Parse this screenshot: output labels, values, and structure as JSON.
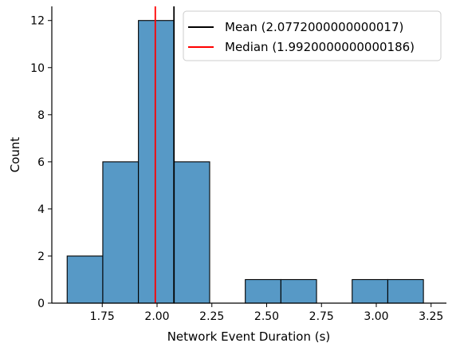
{
  "chart_data": {
    "type": "bar",
    "xlabel": "Network Event Duration (s)",
    "ylabel": "Count",
    "xlim": [
      1.52,
      3.32
    ],
    "ylim": [
      0,
      12.6
    ],
    "xticks": [
      1.75,
      2.0,
      2.25,
      2.5,
      2.75,
      3.0,
      3.25
    ],
    "xtick_labels": [
      "1.75",
      "2.00",
      "2.25",
      "2.50",
      "2.75",
      "3.00",
      "3.25"
    ],
    "yticks": [
      0,
      2,
      4,
      6,
      8,
      10,
      12
    ],
    "ytick_labels": [
      "0",
      "2",
      "4",
      "6",
      "8",
      "10",
      "12"
    ],
    "bin_edges": [
      1.59,
      1.7525,
      1.915,
      2.0775,
      2.24,
      2.4025,
      2.565,
      2.7275,
      2.89,
      3.0525,
      3.215
    ],
    "counts": [
      2,
      6,
      12,
      6,
      0,
      1,
      1,
      0,
      1,
      1
    ],
    "bar_color": "#5799c6",
    "lines": [
      {
        "label": "Mean (2.0772000000000017)",
        "x": 2.0772,
        "color": "#000000"
      },
      {
        "label": "Median (1.9920000000000186)",
        "x": 1.992,
        "color": "#ff0000"
      }
    ],
    "legend_position": "top-right",
    "grid": false
  }
}
